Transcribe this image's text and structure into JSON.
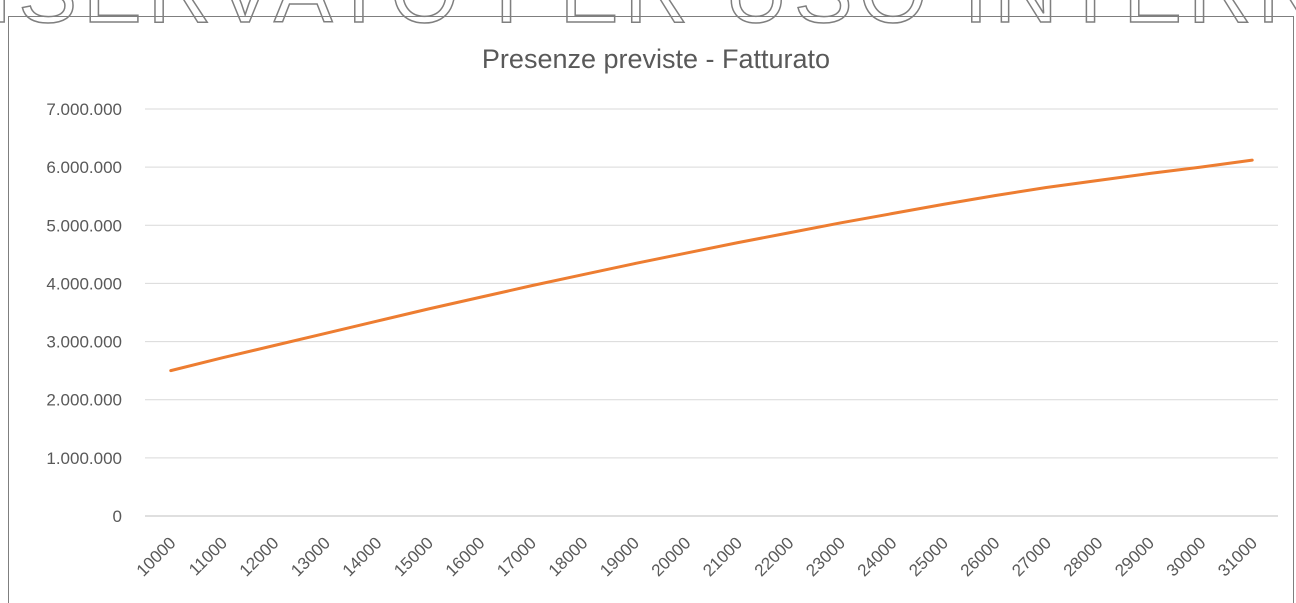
{
  "chart_data": {
    "type": "line",
    "title": "Presenze previste - Fatturato",
    "watermark": "RISERVATO PER USO INTERNO",
    "categories": [
      "10000",
      "11000",
      "12000",
      "13000",
      "14000",
      "15000",
      "16000",
      "17000",
      "18000",
      "19000",
      "20000",
      "21000",
      "22000",
      "23000",
      "24000",
      "25000",
      "26000",
      "27000",
      "28000",
      "29000",
      "30000",
      "31000"
    ],
    "series": [
      {
        "name": "Fatturato",
        "color": "#ed7d31",
        "values": [
          2500000,
          2720000,
          2930000,
          3140000,
          3350000,
          3560000,
          3760000,
          3960000,
          4150000,
          4340000,
          4520000,
          4700000,
          4870000,
          5040000,
          5200000,
          5360000,
          5510000,
          5650000,
          5770000,
          5890000,
          6000000,
          6120000
        ]
      }
    ],
    "ylim": [
      0,
      7000000
    ],
    "yticks": [
      0,
      {
        "value": 1000000,
        "label": "1.000.000"
      },
      {
        "value": 2000000,
        "label": "2.000.000"
      },
      {
        "value": 3000000,
        "label": "3.000.000"
      },
      {
        "value": 4000000,
        "label": "4.000.000"
      },
      {
        "value": 5000000,
        "label": "5.000.000"
      },
      {
        "value": 6000000,
        "label": "6.000.000"
      },
      {
        "value": 7000000,
        "label": "7.000.000"
      }
    ],
    "grid": true
  }
}
